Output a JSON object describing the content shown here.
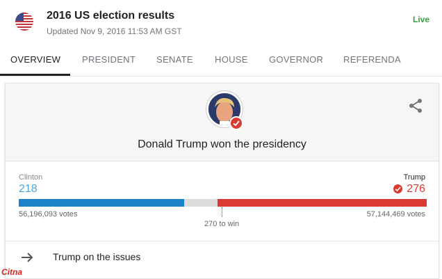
{
  "header": {
    "title": "2016 US election results",
    "updated": "Updated Nov 9, 2016 11:53 AM GST",
    "live": "Live"
  },
  "tabs": [
    {
      "label": "OVERVIEW",
      "active": true
    },
    {
      "label": "PRESIDENT",
      "active": false
    },
    {
      "label": "SENATE",
      "active": false
    },
    {
      "label": "HOUSE",
      "active": false
    },
    {
      "label": "GOVERNOR",
      "active": false
    },
    {
      "label": "REFERENDA",
      "active": false
    }
  ],
  "card": {
    "headline": "Donald Trump won the presidency",
    "share_icon": "share-icon",
    "candidates": {
      "left": {
        "name": "Clinton",
        "electoral_votes": "218",
        "popular_votes": "56,196,093 votes",
        "color": "#1a82c8"
      },
      "right": {
        "name": "Trump",
        "electoral_votes": "276",
        "popular_votes": "57,144,469 votes",
        "color": "#d93b32",
        "winner": true
      }
    },
    "threshold": "270 to win",
    "total_electoral_votes": 538,
    "issues_link": "Trump on the issues"
  },
  "colors": {
    "clinton_text": "#4aa7d5",
    "clinton_bar": "#1a82c8",
    "trump": "#d93b32",
    "live": "#3c9a44"
  },
  "watermark": "Citna"
}
